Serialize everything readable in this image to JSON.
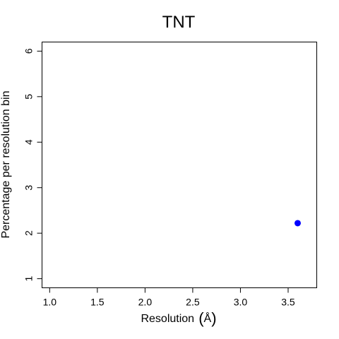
{
  "chart_data": {
    "type": "scatter",
    "title": "TNT",
    "xlabel": "Resolution",
    "xlabel_unit": "Å",
    "ylabel": "Percentage per resolution bin",
    "xlim": [
      0.92,
      3.8
    ],
    "ylim": [
      0.8,
      6.2
    ],
    "x_ticks": [
      1.0,
      1.5,
      2.0,
      2.5,
      3.0,
      3.5
    ],
    "x_tick_labels": [
      "1.0",
      "1.5",
      "2.0",
      "2.5",
      "3.0",
      "3.5"
    ],
    "y_ticks": [
      1,
      2,
      3,
      4,
      5,
      6
    ],
    "y_tick_labels": [
      "1",
      "2",
      "3",
      "4",
      "5",
      "6"
    ],
    "grid": false,
    "points": [
      {
        "x": 3.6,
        "y": 2.22,
        "color": "#0000ff"
      }
    ]
  }
}
